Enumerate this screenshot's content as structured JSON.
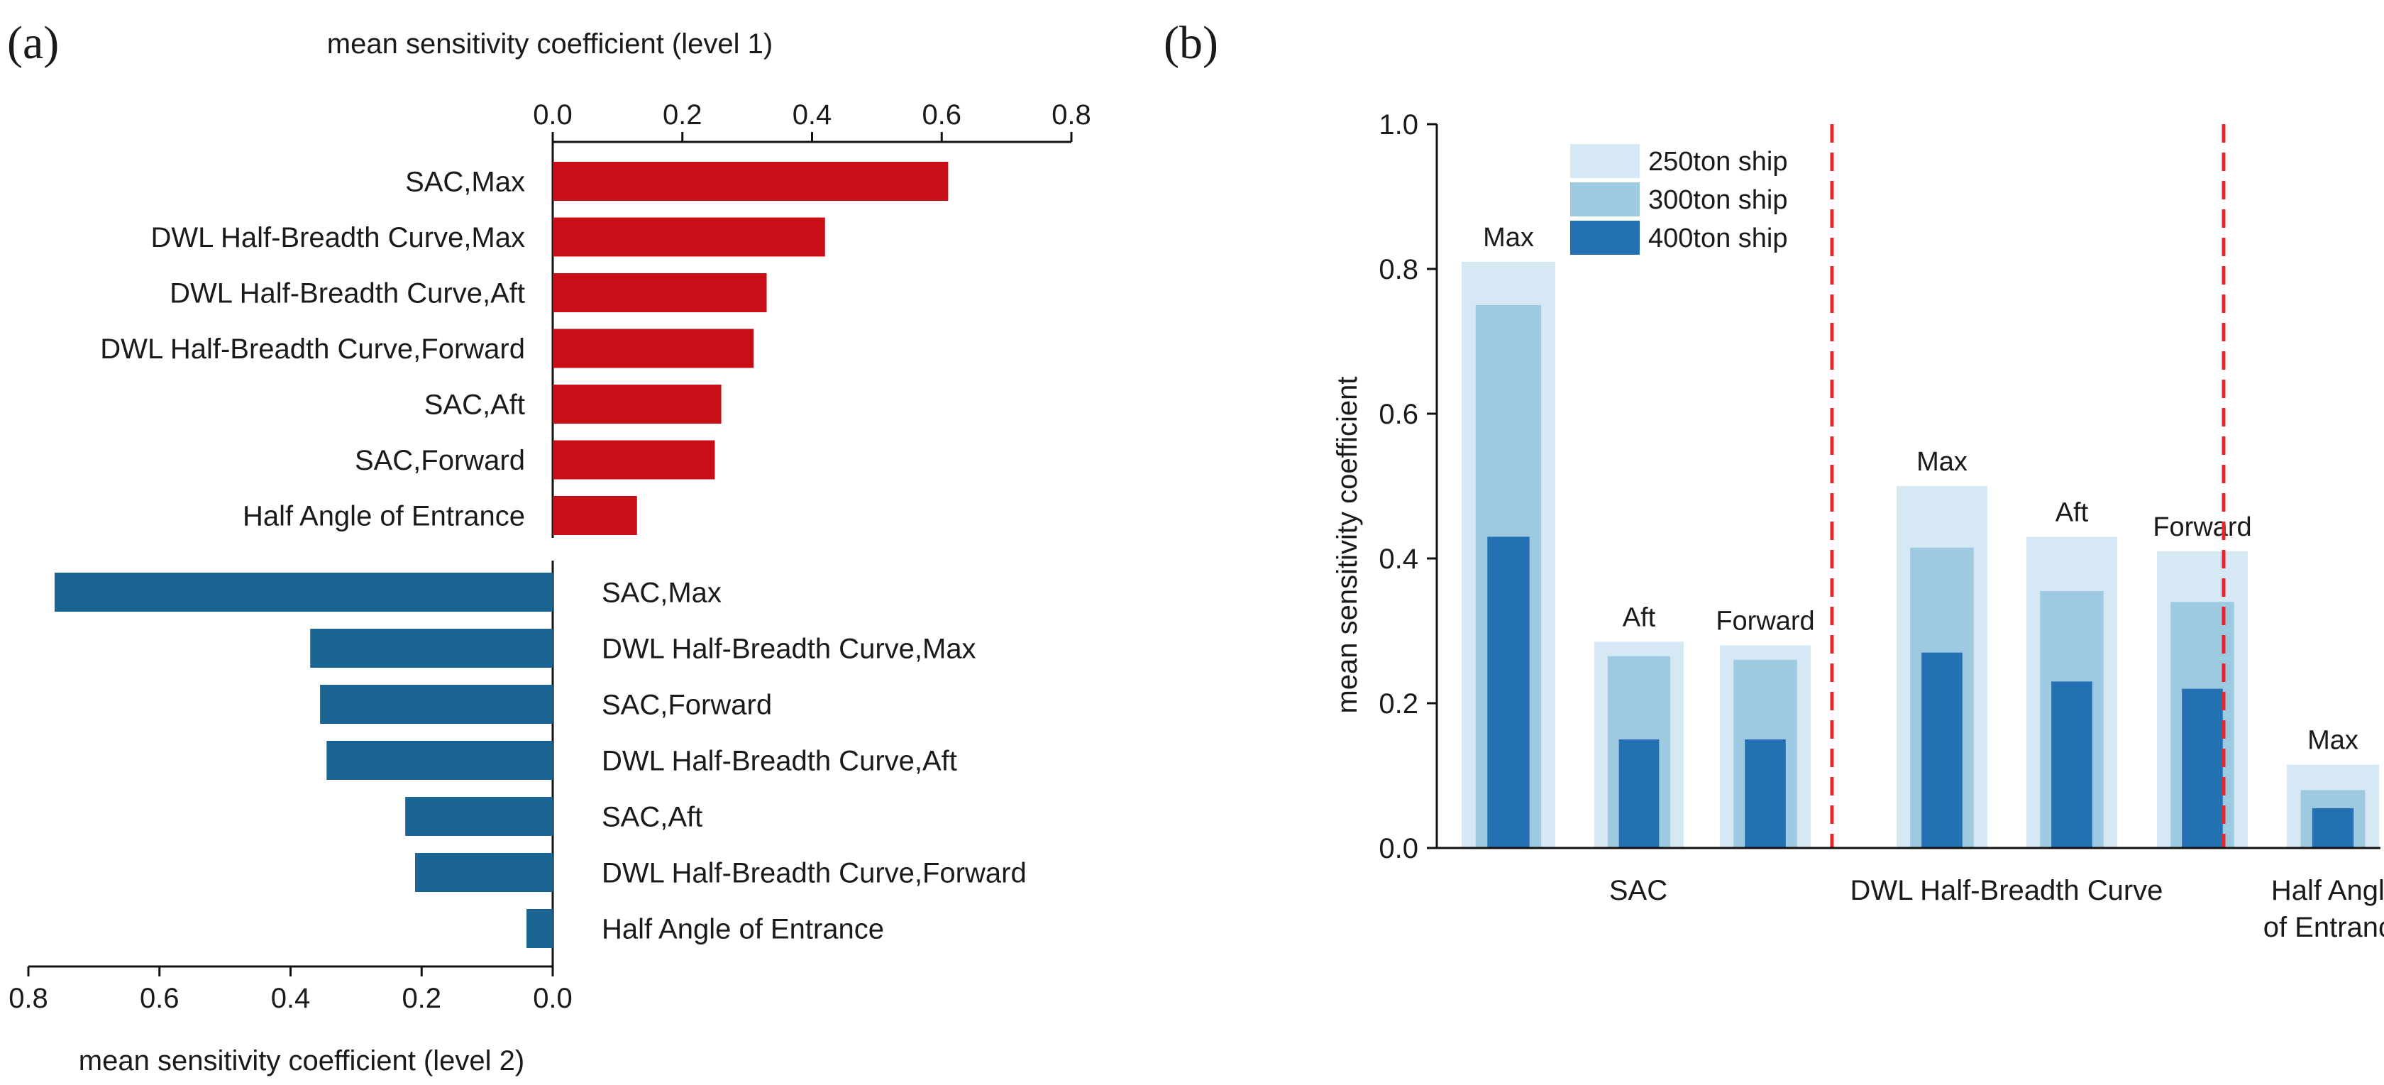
{
  "colors": {
    "level1": "#c80f17",
    "level2": "#1a6593",
    "ship250": "#d6e8f4",
    "ship300": "#9ecae1",
    "ship400": "#2370b2",
    "divider": "#e8252b"
  },
  "chart_data": [
    {
      "panel": "(a)",
      "type": "bar",
      "orientation": "horizontal-diverging",
      "top": {
        "xlabel": "mean sensitivity coefficient (level 1)",
        "ticks": [
          "0.0",
          "0.2",
          "0.4",
          "0.6",
          "0.8"
        ],
        "xlim": [
          0,
          0.8
        ],
        "categories": [
          "SAC,Max",
          "DWL Half-Breadth Curve,Max",
          "DWL Half-Breadth Curve,Aft",
          "DWL Half-Breadth Curve,Forward",
          "SAC,Aft",
          "SAC,Forward",
          "Half Angle of Entrance"
        ],
        "values": [
          0.61,
          0.42,
          0.33,
          0.31,
          0.26,
          0.25,
          0.13
        ]
      },
      "bottom": {
        "xlabel": "mean sensitivity coefficient (level 2)",
        "ticks": [
          "0.8",
          "0.6",
          "0.4",
          "0.2",
          "0.0"
        ],
        "xlim": [
          0.8,
          0
        ],
        "categories": [
          "SAC,Max",
          "DWL Half-Breadth Curve,Max",
          "SAC,Forward",
          "DWL Half-Breadth Curve,Aft",
          "SAC,Aft",
          "DWL Half-Breadth Curve,Forward",
          "Half Angle of Entrance"
        ],
        "values": [
          0.76,
          0.37,
          0.355,
          0.345,
          0.225,
          0.21,
          0.04
        ]
      }
    },
    {
      "panel": "(b)",
      "type": "bar",
      "ylabel": "mean sensitivity coefficient",
      "ylim": [
        0,
        1.0
      ],
      "yticks": [
        "0.0",
        "0.2",
        "0.4",
        "0.6",
        "0.8",
        "1.0"
      ],
      "bar_labels": [
        "Max",
        "Aft",
        "Forward",
        "Max",
        "Aft",
        "Forward",
        "Max"
      ],
      "groups": [
        {
          "name": "SAC",
          "name_lines": [
            "SAC"
          ]
        },
        {
          "name": "DWL Half-Breadth Curve",
          "name_lines": [
            "DWL Half-Breadth Curve"
          ]
        },
        {
          "name": "Half Angle of Entrance",
          "name_lines": [
            "Half Angle",
            "of Entrance"
          ]
        }
      ],
      "series": [
        {
          "name": "250ton ship",
          "values": [
            0.81,
            0.285,
            0.28,
            0.5,
            0.43,
            0.41,
            0.115
          ]
        },
        {
          "name": "300ton ship",
          "values": [
            0.75,
            0.265,
            0.26,
            0.415,
            0.355,
            0.34,
            0.08
          ]
        },
        {
          "name": "400ton ship",
          "values": [
            0.43,
            0.15,
            0.15,
            0.27,
            0.23,
            0.22,
            0.055
          ]
        }
      ]
    }
  ]
}
